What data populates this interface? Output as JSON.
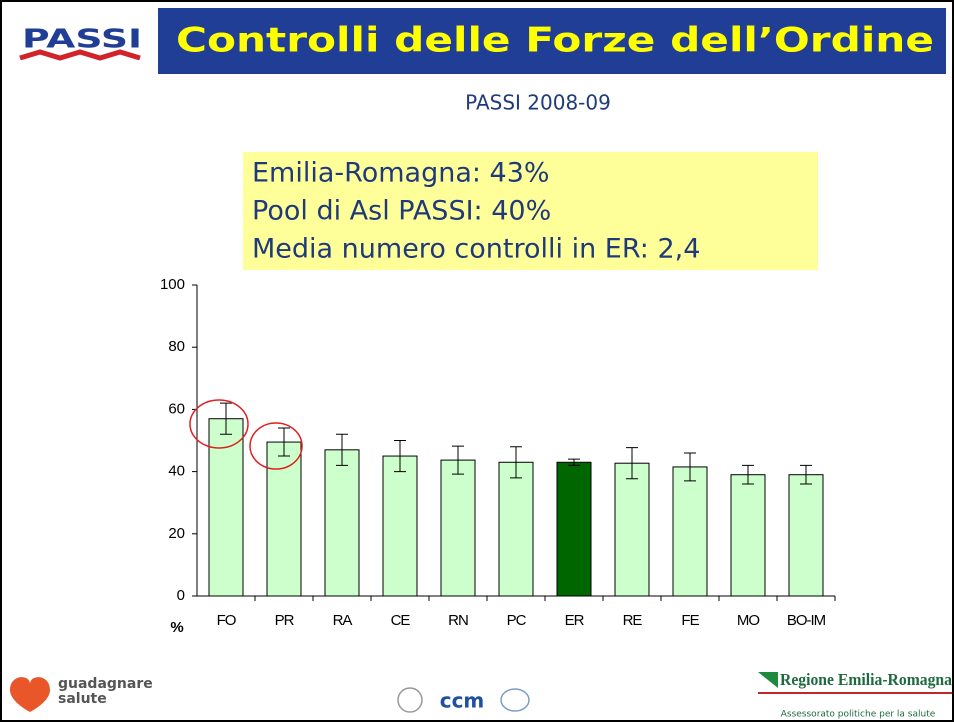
{
  "header": {
    "logo": "PASSI",
    "title": "Controlli delle Forze dell’Ordine",
    "subtitle": "PASSI 2008-09"
  },
  "highlight_box": {
    "lines": [
      "Emilia-Romagna: 43%",
      "Pool di Asl PASSI: 40%",
      "Media numero controlli in ER: 2,4"
    ]
  },
  "chart_data": {
    "type": "bar",
    "x_label": "%",
    "categories": [
      "FO",
      "PR",
      "RA",
      "CE",
      "RN",
      "PC",
      "ER",
      "RE",
      "FE",
      "MO",
      "BO-IM"
    ],
    "values": [
      57,
      49.5,
      47,
      45,
      43.7,
      43,
      43,
      42.7,
      41.5,
      39,
      39
    ],
    "errors": [
      5,
      4.5,
      5,
      5,
      4.5,
      5,
      1,
      5,
      4.5,
      3,
      3
    ],
    "colors": [
      "#ccffcc",
      "#ccffcc",
      "#ccffcc",
      "#ccffcc",
      "#ccffcc",
      "#ccffcc",
      "#006600",
      "#ccffcc",
      "#ccffcc",
      "#ccffcc",
      "#ccffcc"
    ],
    "ylim": [
      0,
      100
    ],
    "yticks": [
      0,
      20,
      40,
      60,
      80,
      100
    ]
  },
  "footer": {
    "left_logo": [
      "guadagnare",
      "salute"
    ],
    "center_logo": "ccm",
    "right_logo": "Regione Emilia-Romagna",
    "right_caption": "Assessorato politiche per la salute"
  }
}
